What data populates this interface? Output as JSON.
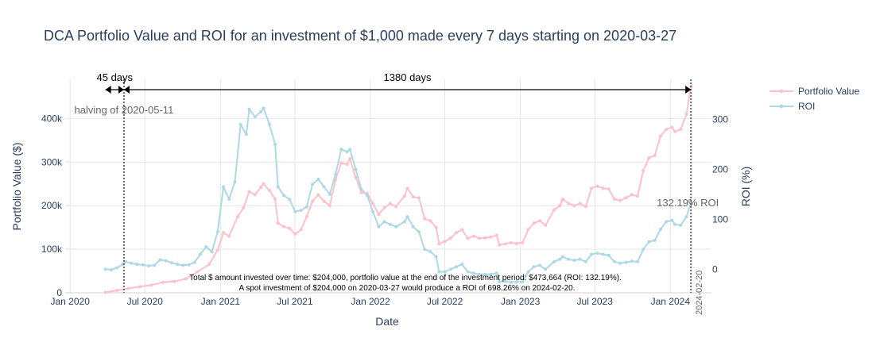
{
  "chart_data": {
    "type": "line",
    "title": "DCA Portfolio Value and ROI for an investment of $1,000 made every 7 days starting on 2020-03-27",
    "xlabel": "Date",
    "ylabel_left": "Portfolio Value ($)",
    "ylabel_right": "ROI (%)",
    "x_range": [
      "2019-12-20",
      "2024-04-10"
    ],
    "y_left_range": [
      0,
      490000
    ],
    "y_right_range": [
      -47,
      380
    ],
    "x_ticks": [
      {
        "date": "2020-01-01",
        "label": "Jan 2020"
      },
      {
        "date": "2020-07-01",
        "label": "Jul 2020"
      },
      {
        "date": "2021-01-01",
        "label": "Jan 2021"
      },
      {
        "date": "2021-07-01",
        "label": "Jul 2021"
      },
      {
        "date": "2022-01-01",
        "label": "Jan 2022"
      },
      {
        "date": "2022-07-01",
        "label": "Jul 2022"
      },
      {
        "date": "2023-01-01",
        "label": "Jan 2023"
      },
      {
        "date": "2023-07-01",
        "label": "Jul 2023"
      },
      {
        "date": "2024-01-01",
        "label": "Jan 2024"
      }
    ],
    "y_left_ticks": [
      {
        "value": 0,
        "label": "0"
      },
      {
        "value": 100000,
        "label": "100k"
      },
      {
        "value": 200000,
        "label": "200k"
      },
      {
        "value": 300000,
        "label": "300k"
      },
      {
        "value": 400000,
        "label": "400k"
      }
    ],
    "y_right_ticks": [
      {
        "value": 0,
        "label": "0"
      },
      {
        "value": 100,
        "label": "100"
      },
      {
        "value": 200,
        "label": "200"
      },
      {
        "value": 300,
        "label": "300"
      }
    ],
    "legend": {
      "position": "top-right"
    },
    "series": [
      {
        "name": "Portfolio Value",
        "axis": "left",
        "color": "#ffc0cb",
        "points": [
          [
            "2020-03-27",
            1000
          ],
          [
            "2020-04-24",
            5500
          ],
          [
            "2020-05-22",
            10000
          ],
          [
            "2020-06-19",
            14000
          ],
          [
            "2020-07-17",
            17500
          ],
          [
            "2020-08-14",
            24000
          ],
          [
            "2020-09-11",
            26000
          ],
          [
            "2020-10-09",
            32000
          ],
          [
            "2020-11-06",
            48000
          ],
          [
            "2020-12-04",
            65000
          ],
          [
            "2020-12-25",
            98000
          ],
          [
            "2021-01-08",
            138000
          ],
          [
            "2021-01-22",
            130000
          ],
          [
            "2021-02-12",
            175000
          ],
          [
            "2021-02-26",
            195000
          ],
          [
            "2021-03-12",
            232000
          ],
          [
            "2021-03-26",
            225000
          ],
          [
            "2021-04-09",
            242000
          ],
          [
            "2021-04-16",
            250000
          ],
          [
            "2021-04-30",
            235000
          ],
          [
            "2021-05-14",
            215000
          ],
          [
            "2021-05-21",
            160000
          ],
          [
            "2021-06-04",
            152000
          ],
          [
            "2021-06-18",
            148000
          ],
          [
            "2021-07-02",
            135000
          ],
          [
            "2021-07-16",
            145000
          ],
          [
            "2021-07-30",
            175000
          ],
          [
            "2021-08-13",
            210000
          ],
          [
            "2021-08-27",
            225000
          ],
          [
            "2021-09-10",
            210000
          ],
          [
            "2021-09-24",
            200000
          ],
          [
            "2021-10-08",
            260000
          ],
          [
            "2021-10-22",
            298000
          ],
          [
            "2021-11-05",
            295000
          ],
          [
            "2021-11-12",
            308000
          ],
          [
            "2021-11-26",
            265000
          ],
          [
            "2021-12-10",
            230000
          ],
          [
            "2021-12-24",
            228000
          ],
          [
            "2022-01-07",
            205000
          ],
          [
            "2022-01-21",
            180000
          ],
          [
            "2022-02-04",
            195000
          ],
          [
            "2022-02-18",
            205000
          ],
          [
            "2022-03-04",
            198000
          ],
          [
            "2022-03-25",
            222000
          ],
          [
            "2022-04-01",
            240000
          ],
          [
            "2022-04-15",
            220000
          ],
          [
            "2022-04-29",
            218000
          ],
          [
            "2022-05-13",
            170000
          ],
          [
            "2022-05-27",
            165000
          ],
          [
            "2022-06-10",
            150000
          ],
          [
            "2022-06-17",
            112000
          ],
          [
            "2022-07-01",
            118000
          ],
          [
            "2022-07-15",
            125000
          ],
          [
            "2022-07-29",
            138000
          ],
          [
            "2022-08-12",
            145000
          ],
          [
            "2022-08-26",
            125000
          ],
          [
            "2022-09-09",
            130000
          ],
          [
            "2022-09-23",
            125000
          ],
          [
            "2022-10-07",
            126000
          ],
          [
            "2022-10-21",
            128000
          ],
          [
            "2022-11-04",
            132000
          ],
          [
            "2022-11-11",
            110000
          ],
          [
            "2022-11-25",
            112000
          ],
          [
            "2022-12-09",
            115000
          ],
          [
            "2022-12-23",
            113000
          ],
          [
            "2023-01-06",
            115000
          ],
          [
            "2023-01-20",
            145000
          ],
          [
            "2023-02-03",
            160000
          ],
          [
            "2023-02-17",
            165000
          ],
          [
            "2023-03-03",
            155000
          ],
          [
            "2023-03-24",
            190000
          ],
          [
            "2023-04-07",
            200000
          ],
          [
            "2023-04-14",
            215000
          ],
          [
            "2023-04-28",
            205000
          ],
          [
            "2023-05-12",
            200000
          ],
          [
            "2023-05-26",
            205000
          ],
          [
            "2023-06-09",
            198000
          ],
          [
            "2023-06-23",
            240000
          ],
          [
            "2023-07-07",
            245000
          ],
          [
            "2023-07-21",
            240000
          ],
          [
            "2023-08-04",
            238000
          ],
          [
            "2023-08-18",
            215000
          ],
          [
            "2023-09-01",
            212000
          ],
          [
            "2023-09-15",
            218000
          ],
          [
            "2023-09-29",
            225000
          ],
          [
            "2023-10-13",
            222000
          ],
          [
            "2023-10-27",
            280000
          ],
          [
            "2023-11-10",
            310000
          ],
          [
            "2023-11-24",
            315000
          ],
          [
            "2023-12-08",
            360000
          ],
          [
            "2023-12-22",
            375000
          ],
          [
            "2024-01-05",
            380000
          ],
          [
            "2024-01-12",
            370000
          ],
          [
            "2024-01-26",
            375000
          ],
          [
            "2024-02-09",
            410000
          ],
          [
            "2024-02-20",
            473664
          ]
        ]
      },
      {
        "name": "ROI",
        "axis": "right",
        "color": "#add8e6",
        "points": [
          [
            "2020-03-27",
            0
          ],
          [
            "2020-04-10",
            -1
          ],
          [
            "2020-04-24",
            3
          ],
          [
            "2020-05-08",
            10
          ],
          [
            "2020-05-15",
            15
          ],
          [
            "2020-05-29",
            12
          ],
          [
            "2020-06-12",
            10
          ],
          [
            "2020-06-26",
            9
          ],
          [
            "2020-07-10",
            7
          ],
          [
            "2020-07-24",
            8
          ],
          [
            "2020-08-07",
            19
          ],
          [
            "2020-08-21",
            17
          ],
          [
            "2020-09-04",
            13
          ],
          [
            "2020-09-18",
            10
          ],
          [
            "2020-10-02",
            8
          ],
          [
            "2020-10-16",
            9
          ],
          [
            "2020-10-30",
            14
          ],
          [
            "2020-11-13",
            30
          ],
          [
            "2020-11-27",
            45
          ],
          [
            "2020-12-11",
            35
          ],
          [
            "2020-12-25",
            75
          ],
          [
            "2021-01-08",
            165
          ],
          [
            "2021-01-22",
            140
          ],
          [
            "2021-02-05",
            175
          ],
          [
            "2021-02-19",
            290
          ],
          [
            "2021-03-05",
            270
          ],
          [
            "2021-03-12",
            320
          ],
          [
            "2021-03-26",
            305
          ],
          [
            "2021-04-09",
            315
          ],
          [
            "2021-04-16",
            322
          ],
          [
            "2021-04-30",
            290
          ],
          [
            "2021-05-14",
            250
          ],
          [
            "2021-05-21",
            165
          ],
          [
            "2021-06-04",
            148
          ],
          [
            "2021-06-18",
            140
          ],
          [
            "2021-07-02",
            115
          ],
          [
            "2021-07-16",
            118
          ],
          [
            "2021-07-30",
            125
          ],
          [
            "2021-08-13",
            170
          ],
          [
            "2021-08-27",
            180
          ],
          [
            "2021-09-10",
            165
          ],
          [
            "2021-09-24",
            150
          ],
          [
            "2021-10-08",
            190
          ],
          [
            "2021-10-22",
            240
          ],
          [
            "2021-11-05",
            235
          ],
          [
            "2021-11-12",
            240
          ],
          [
            "2021-11-26",
            200
          ],
          [
            "2021-12-10",
            160
          ],
          [
            "2021-12-24",
            148
          ],
          [
            "2022-01-07",
            115
          ],
          [
            "2022-01-21",
            85
          ],
          [
            "2022-02-04",
            95
          ],
          [
            "2022-02-18",
            90
          ],
          [
            "2022-03-04",
            85
          ],
          [
            "2022-03-25",
            95
          ],
          [
            "2022-04-01",
            105
          ],
          [
            "2022-04-15",
            85
          ],
          [
            "2022-04-29",
            75
          ],
          [
            "2022-05-13",
            40
          ],
          [
            "2022-05-27",
            35
          ],
          [
            "2022-06-10",
            25
          ],
          [
            "2022-06-17",
            -5
          ],
          [
            "2022-07-01",
            -5
          ],
          [
            "2022-07-15",
            0
          ],
          [
            "2022-07-29",
            5
          ],
          [
            "2022-08-12",
            10
          ],
          [
            "2022-08-26",
            -5
          ],
          [
            "2022-09-09",
            -8
          ],
          [
            "2022-09-23",
            -10
          ],
          [
            "2022-10-07",
            -10
          ],
          [
            "2022-10-21",
            -10
          ],
          [
            "2022-11-04",
            -8
          ],
          [
            "2022-11-11",
            -25
          ],
          [
            "2022-11-25",
            -24
          ],
          [
            "2022-12-09",
            -26
          ],
          [
            "2022-12-23",
            -25
          ],
          [
            "2023-01-06",
            -25
          ],
          [
            "2023-01-20",
            -5
          ],
          [
            "2023-02-03",
            5
          ],
          [
            "2023-02-17",
            8
          ],
          [
            "2023-03-03",
            0
          ],
          [
            "2023-03-24",
            15
          ],
          [
            "2023-04-07",
            20
          ],
          [
            "2023-04-14",
            25
          ],
          [
            "2023-04-28",
            20
          ],
          [
            "2023-05-12",
            18
          ],
          [
            "2023-05-26",
            20
          ],
          [
            "2023-06-09",
            15
          ],
          [
            "2023-06-23",
            30
          ],
          [
            "2023-07-07",
            32
          ],
          [
            "2023-07-21",
            30
          ],
          [
            "2023-08-04",
            28
          ],
          [
            "2023-08-18",
            15
          ],
          [
            "2023-09-01",
            12
          ],
          [
            "2023-09-15",
            14
          ],
          [
            "2023-09-29",
            16
          ],
          [
            "2023-10-13",
            15
          ],
          [
            "2023-10-27",
            40
          ],
          [
            "2023-11-10",
            55
          ],
          [
            "2023-11-24",
            58
          ],
          [
            "2023-12-08",
            80
          ],
          [
            "2023-12-22",
            95
          ],
          [
            "2024-01-05",
            98
          ],
          [
            "2024-01-12",
            90
          ],
          [
            "2024-01-26",
            88
          ],
          [
            "2024-02-09",
            105
          ],
          [
            "2024-02-20",
            132.19
          ]
        ]
      }
    ],
    "annotations": {
      "halving_date": "2020-05-11",
      "halving_label": "halving of 2020-05-11",
      "end_date": "2024-02-20",
      "end_date_label": "2024-02-20",
      "start_date": "2020-03-27",
      "span1_label": "45 days",
      "span2_label": "1380 days",
      "roi_label": "132.19% ROI",
      "roi_label_value": 132.19,
      "footnote_line1": "Total $ amount invested over time: $204,000, portfolio value at the end of the investment period: $473,664 (ROI: 132.19%).",
      "footnote_line2": "A spot investment of $204,000 on 2020-03-27 would produce a ROI of 698.26% on 2024-02-20."
    }
  }
}
